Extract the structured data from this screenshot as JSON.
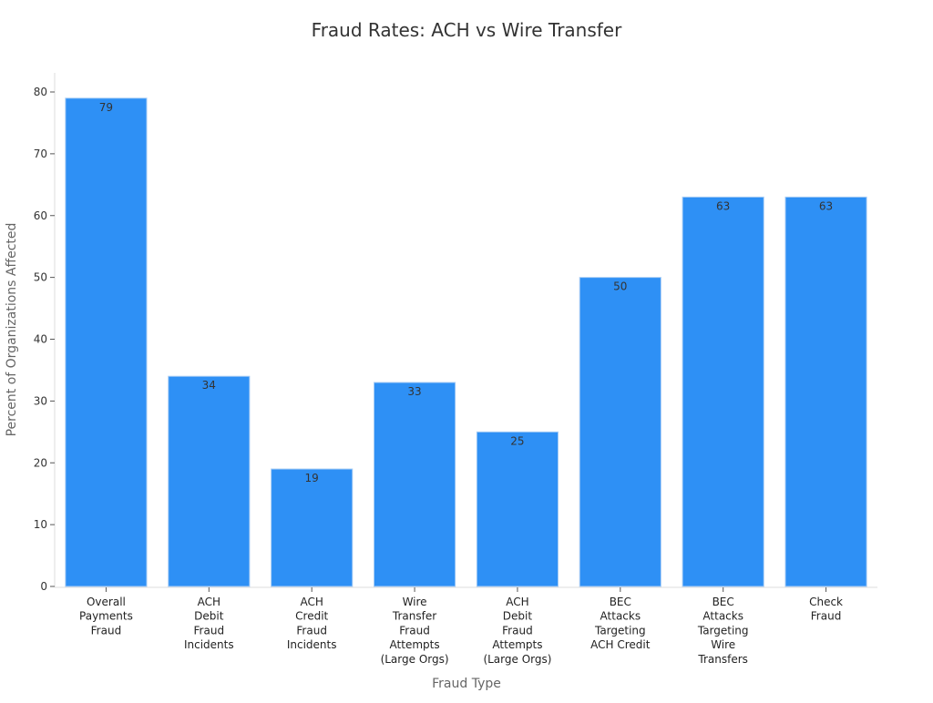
{
  "chart_data": {
    "type": "bar",
    "title": "Fraud Rates: ACH vs Wire Transfer",
    "xlabel": "Fraud Type",
    "ylabel": "Percent of Organizations Affected",
    "categories": [
      [
        "Overall",
        "Payments",
        "Fraud"
      ],
      [
        "ACH",
        "Debit",
        "Fraud",
        "Incidents"
      ],
      [
        "ACH",
        "Credit",
        "Fraud",
        "Incidents"
      ],
      [
        "Wire",
        "Transfer",
        "Fraud",
        "Attempts",
        "(Large Orgs)"
      ],
      [
        "ACH",
        "Debit",
        "Fraud",
        "Attempts",
        "(Large Orgs)"
      ],
      [
        "BEC",
        "Attacks",
        "Targeting",
        "ACH Credit"
      ],
      [
        "BEC",
        "Attacks",
        "Targeting",
        "Wire",
        "Transfers"
      ],
      [
        "Check",
        "Fraud"
      ]
    ],
    "values": [
      79,
      34,
      19,
      33,
      25,
      50,
      63,
      63
    ],
    "ylim": [
      0,
      80
    ],
    "yticks": [
      0,
      10,
      20,
      30,
      40,
      50,
      60,
      70,
      80
    ],
    "grid": false,
    "data_labels": true,
    "bar_color": "#2e90f5"
  }
}
